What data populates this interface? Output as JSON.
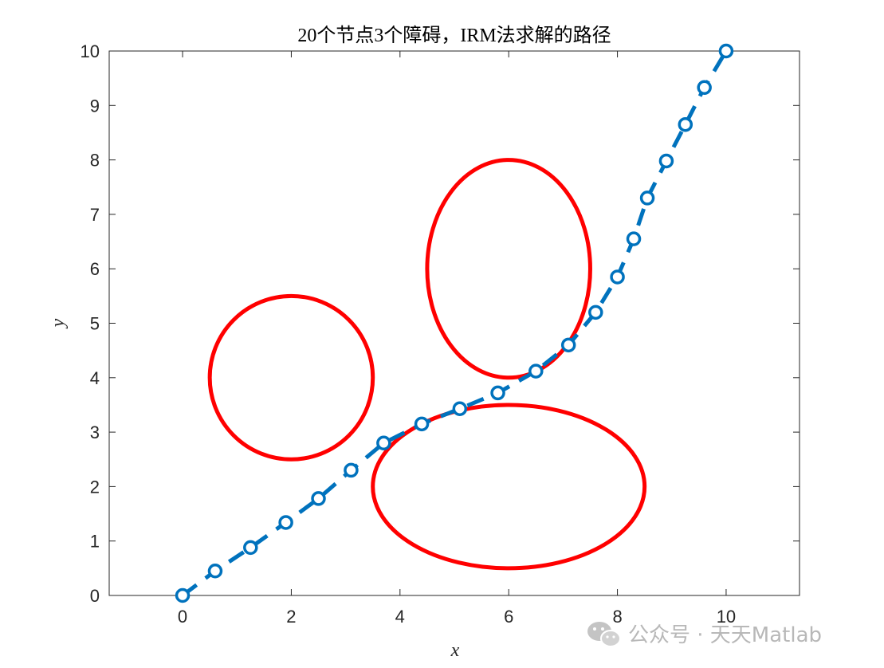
{
  "chart_data": {
    "type": "line",
    "title": "20个节点3个障碍，IRM法求解的路径",
    "xlabel": "x",
    "ylabel": "y",
    "xlim": [
      -1.35,
      11.35
    ],
    "ylim": [
      0,
      10
    ],
    "xticks": [
      0,
      2,
      4,
      6,
      8,
      10
    ],
    "yticks": [
      0,
      1,
      2,
      3,
      4,
      5,
      6,
      7,
      8,
      9,
      10
    ],
    "grid": false,
    "box": true,
    "path": {
      "color": "#0072BD",
      "line_style": "dashed",
      "marker": "circle",
      "x": [
        0,
        0.6,
        1.25,
        1.9,
        2.5,
        3.1,
        3.7,
        4.4,
        5.1,
        5.8,
        6.5,
        7.1,
        7.6,
        8.0,
        8.3,
        8.55,
        8.9,
        9.25,
        9.6,
        10
      ],
      "y": [
        0,
        0.45,
        0.88,
        1.34,
        1.78,
        2.3,
        2.8,
        3.15,
        3.43,
        3.72,
        4.12,
        4.6,
        5.2,
        5.85,
        6.55,
        7.3,
        7.98,
        8.65,
        9.33,
        10
      ]
    },
    "obstacles": [
      {
        "shape": "circle",
        "cx": 2,
        "cy": 4,
        "rx": 1.5,
        "ry": 1.5,
        "color": "#FF0000"
      },
      {
        "shape": "ellipse",
        "cx": 6,
        "cy": 6,
        "rx": 1.5,
        "ry": 2,
        "color": "#FF0000"
      },
      {
        "shape": "ellipse",
        "cx": 6,
        "cy": 2,
        "rx": 2.5,
        "ry": 1.5,
        "color": "#FF0000"
      }
    ]
  },
  "watermark": {
    "text": "公众号 · 天天Matlab",
    "icon": "wechat-icon",
    "color": "#b8b8b8"
  }
}
